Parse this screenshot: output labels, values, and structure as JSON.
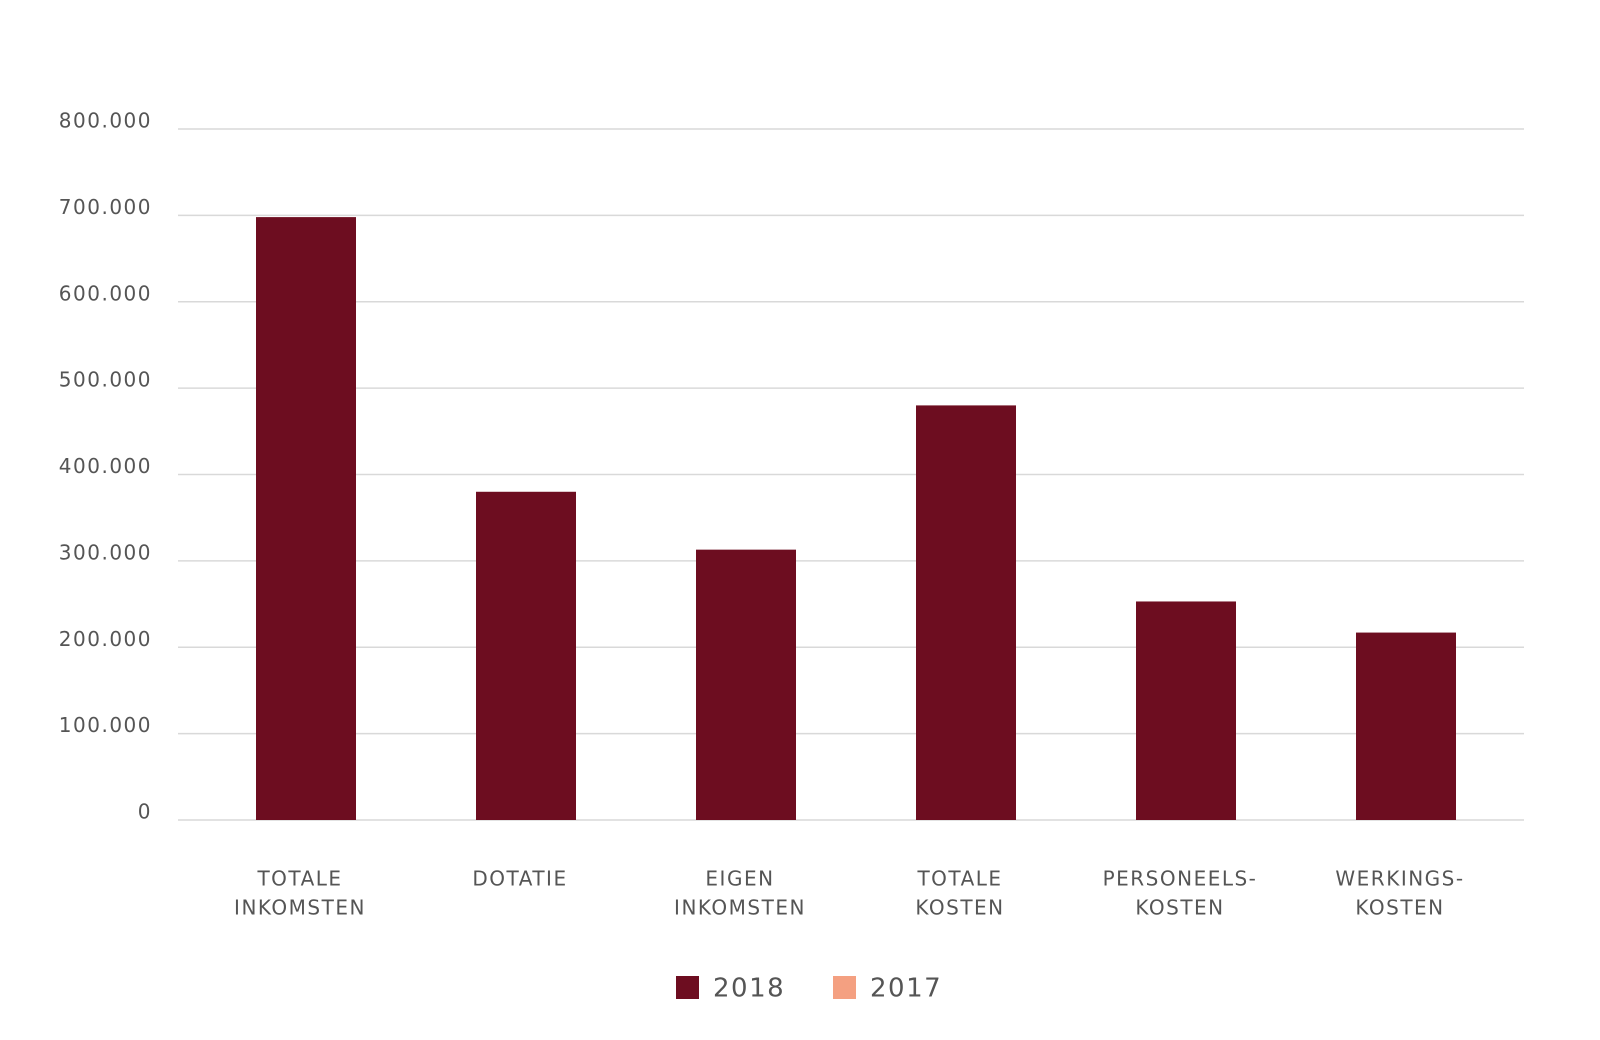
{
  "chart_data": {
    "type": "bar",
    "categories": [
      [
        "TOTALE",
        "INKOMSTEN"
      ],
      [
        "DOTATIE"
      ],
      [
        "EIGEN",
        "INKOMSTEN"
      ],
      [
        "TOTALE",
        "KOSTEN"
      ],
      [
        "PERSONEELS-",
        "KOSTEN"
      ],
      [
        "WERKINGS-",
        "KOSTEN"
      ]
    ],
    "series": [
      {
        "name": "2018",
        "color": "#6d0d20",
        "values": [
          698000,
          380000,
          313000,
          480000,
          253000,
          217000
        ]
      },
      {
        "name": "2017",
        "color": "#f4a081",
        "values": [
          null,
          null,
          null,
          null,
          null,
          null
        ]
      }
    ],
    "ylim": [
      0,
      800000
    ],
    "yticks": [
      0,
      {
        "value": 100000,
        "label": "100.000"
      },
      {
        "value": 200000,
        "label": "200.000"
      },
      {
        "value": 300000,
        "label": "300.000"
      },
      {
        "value": 400000,
        "label": "400.000"
      },
      {
        "value": 500000,
        "label": "500.000"
      },
      {
        "value": 600000,
        "label": "600.000"
      },
      {
        "value": 700000,
        "label": "700.000"
      },
      {
        "value": 800000,
        "label": "800.000"
      }
    ],
    "grid": true,
    "legend": "bottom"
  }
}
